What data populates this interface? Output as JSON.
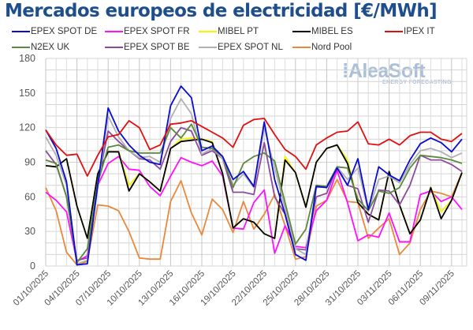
{
  "chart_data": {
    "type": "line",
    "title": "Mercados europeos de electricidad [€/MWh]",
    "xlabel": "",
    "ylabel": "",
    "ylim": [
      0,
      180
    ],
    "yticks": [
      "0",
      "30",
      "60",
      "90",
      "120",
      "150",
      "180"
    ],
    "grid": true,
    "legend_position": "top",
    "watermark": "AleaSoft ENERGY FORECASTING",
    "x": [
      "01/10/2025",
      "02/10/2025",
      "03/10/2025",
      "04/10/2025",
      "05/10/2025",
      "06/10/2025",
      "07/10/2025",
      "08/10/2025",
      "09/10/2025",
      "10/10/2025",
      "11/10/2025",
      "12/10/2025",
      "13/10/2025",
      "14/10/2025",
      "15/10/2025",
      "16/10/2025",
      "17/10/2025",
      "18/10/2025",
      "19/10/2025",
      "20/10/2025",
      "21/10/2025",
      "22/10/2025",
      "23/10/2025",
      "24/10/2025",
      "25/10/2025",
      "26/10/2025",
      "27/10/2025",
      "28/10/2025",
      "29/10/2025",
      "30/10/2025",
      "31/10/2025",
      "01/11/2025",
      "02/11/2025",
      "03/11/2025",
      "04/11/2025",
      "05/11/2025",
      "06/11/2025",
      "07/11/2025",
      "08/11/2025",
      "09/11/2025",
      "10/11/2025"
    ],
    "series": [
      {
        "name": "EPEX SPOT DE",
        "color": "#0a0ad0",
        "values": [
          118,
          102,
          73,
          1,
          2,
          70,
          137,
          117,
          105,
          96,
          90,
          88,
          139,
          156,
          146,
          100,
          104,
          95,
          75,
          82,
          69,
          125,
          75,
          45,
          10,
          5,
          69,
          68,
          85,
          70,
          93,
          49,
          86,
          79,
          74,
          92,
          106,
          111,
          107,
          99,
          110
        ]
      },
      {
        "name": "EPEX SPOT FR",
        "color": "#ff10ff",
        "values": [
          64,
          57,
          47,
          4,
          9,
          70,
          89,
          95,
          84,
          83,
          69,
          61,
          78,
          94,
          90,
          87,
          91,
          78,
          33,
          32,
          55,
          66,
          11,
          35,
          17,
          16,
          48,
          57,
          83,
          55,
          22,
          27,
          25,
          46,
          21,
          21,
          62,
          65,
          56,
          60,
          49
        ]
      },
      {
        "name": "MIBEL PT",
        "color": "#f5f500",
        "values": [
          87,
          86,
          93,
          52,
          24,
          80,
          99,
          99,
          70,
          80,
          73,
          65,
          102,
          110,
          111,
          110,
          108,
          80,
          33,
          41,
          38,
          28,
          24,
          95,
          81,
          51,
          90,
          102,
          105,
          92,
          55,
          45,
          40,
          82,
          53,
          28,
          40,
          68,
          47,
          57,
          81
        ]
      },
      {
        "name": "MIBEL ES",
        "color": "#000000",
        "values": [
          87,
          86,
          93,
          52,
          24,
          80,
          99,
          99,
          65,
          80,
          73,
          65,
          102,
          108,
          109,
          110,
          107,
          80,
          33,
          41,
          38,
          28,
          24,
          92,
          81,
          51,
          90,
          102,
          105,
          89,
          55,
          45,
          40,
          82,
          53,
          28,
          40,
          68,
          41,
          57,
          81
        ]
      },
      {
        "name": "IPEX IT",
        "color": "#e01010",
        "values": [
          118,
          105,
          96,
          97,
          78,
          96,
          112,
          114,
          126,
          120,
          101,
          105,
          123,
          124,
          126,
          121,
          116,
          111,
          103,
          122,
          127,
          128,
          114,
          101,
          95,
          84,
          105,
          111,
          116,
          117,
          125,
          106,
          105,
          110,
          105,
          113,
          116,
          116,
          110,
          108,
          115
        ]
      },
      {
        "name": "N2EX UK",
        "color": "#5b8a3c",
        "values": [
          92,
          89,
          60,
          3,
          15,
          72,
          103,
          105,
          100,
          98,
          98,
          98,
          120,
          111,
          123,
          103,
          102,
          95,
          68,
          89,
          95,
          98,
          91,
          55,
          19,
          32,
          70,
          69,
          86,
          85,
          58,
          48,
          65,
          63,
          68,
          85,
          96,
          95,
          94,
          92,
          89
        ]
      },
      {
        "name": "EPEX SPOT BE",
        "color": "#8e4a9e",
        "values": [
          100,
          88,
          60,
          5,
          7,
          72,
          117,
          108,
          100,
          93,
          92,
          84,
          108,
          120,
          117,
          96,
          100,
          93,
          64,
          64,
          62,
          107,
          60,
          45,
          15,
          14,
          60,
          63,
          86,
          70,
          67,
          38,
          66,
          65,
          53,
          70,
          96,
          92,
          92,
          88,
          82
        ]
      },
      {
        "name": "EPEX SPOT NL",
        "color": "#b0b0b0",
        "values": [
          112,
          96,
          70,
          2,
          5,
          68,
          130,
          112,
          100,
          94,
          95,
          90,
          128,
          145,
          132,
          97,
          102,
          93,
          70,
          80,
          68,
          120,
          85,
          50,
          15,
          10,
          68,
          69,
          86,
          75,
          85,
          48,
          75,
          78,
          72,
          88,
          100,
          102,
          99,
          94,
          98
        ]
      },
      {
        "name": "Nord Pool",
        "color": "#e8893c",
        "values": [
          68,
          48,
          12,
          1,
          4,
          53,
          52,
          48,
          30,
          7,
          6,
          6,
          56,
          74,
          46,
          27,
          58,
          49,
          29,
          56,
          32,
          45,
          62,
          35,
          6,
          8,
          52,
          57,
          75,
          56,
          55,
          24,
          33,
          41,
          10,
          20,
          49,
          65,
          63,
          60,
          81
        ]
      }
    ]
  }
}
